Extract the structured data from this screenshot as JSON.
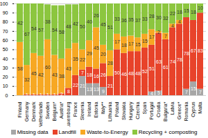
{
  "chart_data": {
    "type": "bar",
    "stacked": true,
    "data_labels": true,
    "grid": true,
    "categories": [
      "Finland",
      "Germany",
      "Denmark",
      "Netherlands",
      "Sweden",
      "Belgium*",
      "Austria*",
      "Luxembourg",
      "France",
      "Slovenia",
      "Ireland",
      "Estonia",
      "Italy**",
      "Lithuania",
      "Poland",
      "Slovakia",
      "Hungary",
      "Czechia",
      "Spain",
      "Portugal",
      "Croatia",
      "Bulgaria*",
      "Latvia",
      "Greece*",
      "Romania",
      "Cyprus",
      "Malta"
    ],
    "series": [
      {
        "name": "Missing data",
        "color": "#a6a6a6",
        "values": [
          0,
          0,
          0,
          0,
          0,
          0,
          0,
          0,
          0,
          21,
          13,
          13,
          9,
          0,
          0,
          0,
          0,
          0,
          0,
          4,
          5,
          0,
          0,
          0,
          7,
          15,
          7
        ]
      },
      {
        "name": "Landfill",
        "color": "#e8432a",
        "values": [
          0,
          1,
          1,
          1,
          1,
          1,
          2,
          8,
          22,
          7,
          18,
          16,
          26,
          21,
          50,
          46,
          48,
          48,
          52,
          51,
          63,
          61,
          74,
          78,
          78,
          67,
          83
        ]
      },
      {
        "name": "Waste-to-Energy",
        "color": "#f7a823",
        "values": [
          58,
          32,
          45,
          42,
          60,
          43,
          38,
          43,
          35,
          22,
          29,
          45,
          20,
          28,
          17,
          18,
          17,
          15,
          15,
          17,
          2,
          7,
          4,
          4,
          0,
          0,
          0
        ]
      },
      {
        "name": "Recycling + composting",
        "color": "#8cc63f",
        "values": [
          42,
          67,
          54,
          57,
          38,
          54,
          58,
          48,
          42,
          50,
          40,
          26,
          45,
          51,
          33,
          36,
          35,
          37,
          33,
          28,
          30,
          32,
          22,
          18,
          15,
          18,
          10
        ]
      }
    ],
    "ylim": [
      0,
      100
    ],
    "yticks": [
      0,
      10,
      20,
      30,
      40,
      50,
      60,
      70,
      80,
      90,
      100
    ]
  }
}
